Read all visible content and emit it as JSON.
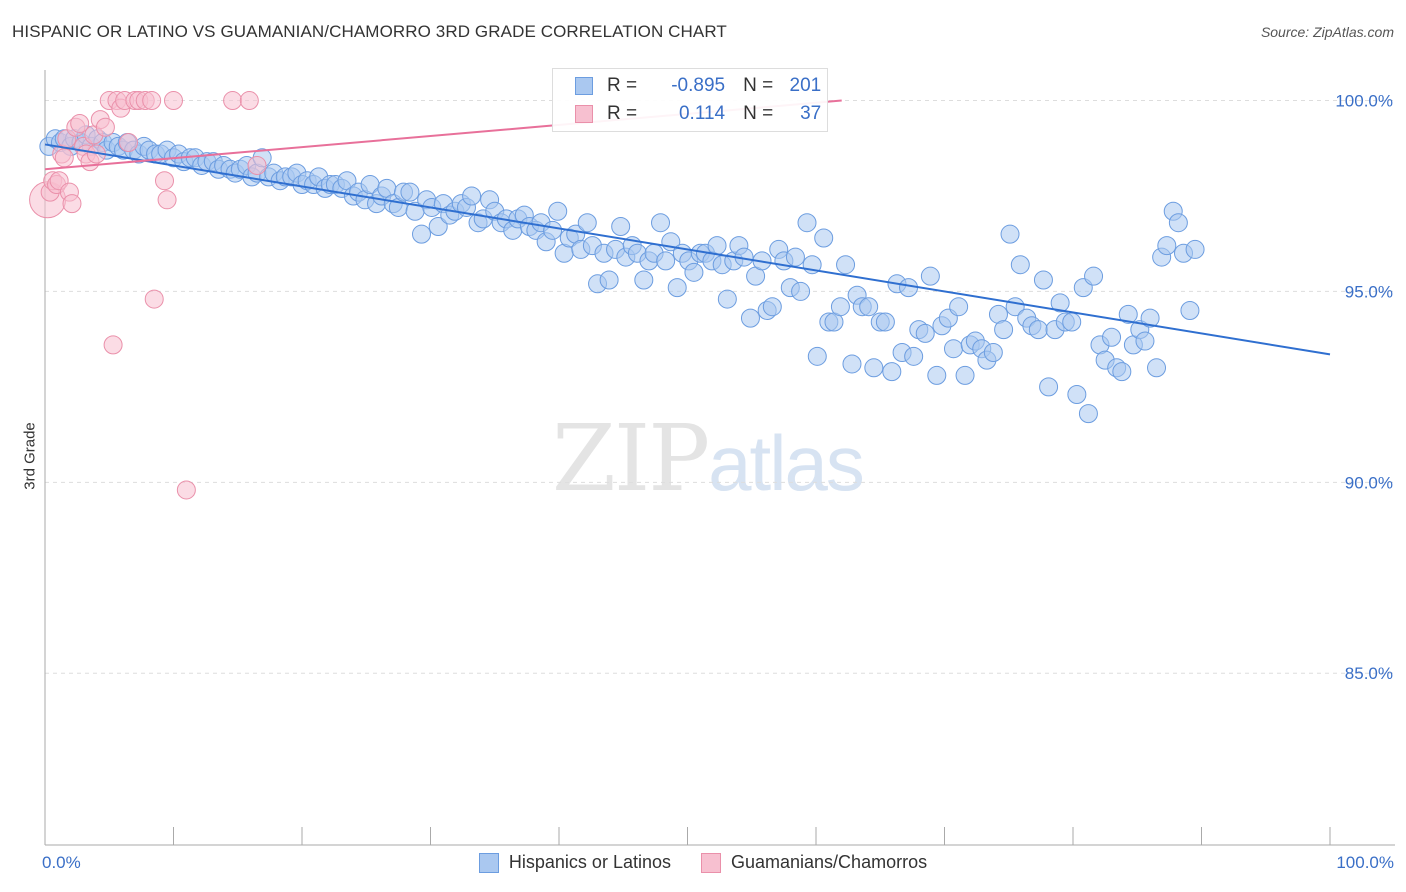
{
  "title": "HISPANIC OR LATINO VS GUAMANIAN/CHAMORRO 3RD GRADE CORRELATION CHART",
  "source": "Source: ZipAtlas.com",
  "watermark": {
    "zip": "ZIP",
    "atlas": "atlas"
  },
  "legend": {
    "rows": [
      {
        "r_label": "R =",
        "r_value": "-0.895",
        "n_label": "N =",
        "n_value": "201"
      },
      {
        "r_label": "R =",
        "r_value": "0.114",
        "n_label": "N =",
        "n_value": "37"
      }
    ]
  },
  "bottom_legend": [
    "Hispanics or Latinos",
    "Guamanians/Chamorros"
  ],
  "colors": {
    "blue_fill": "#aac8f0",
    "blue_stroke": "#6c9de0",
    "blue_line": "#2f6fd0",
    "pink_fill": "#f7c0d0",
    "pink_stroke": "#ea90aa",
    "pink_line": "#e8709a",
    "axis_text": "#3a6fc7",
    "grid": "#dddddd"
  },
  "chart_data": {
    "type": "scatter",
    "title": "HISPANIC OR LATINO VS GUAMANIAN/CHAMORRO 3RD GRADE CORRELATION CHART",
    "xlabel": "",
    "ylabel": "3rd Grade",
    "xlim": [
      0,
      100
    ],
    "ylim": [
      80.5,
      100.8
    ],
    "x_tick_labels": [
      "0.0%",
      "100.0%"
    ],
    "y_ticks": [
      85,
      90,
      95,
      100
    ],
    "y_tick_labels": [
      "85.0%",
      "90.0%",
      "95.0%",
      "100.0%"
    ],
    "series": [
      {
        "name": "Hispanics or Latinos",
        "R": -0.895,
        "N": 201,
        "trend": {
          "x": [
            0,
            100
          ],
          "y": [
            98.85,
            93.35
          ]
        },
        "points": [
          [
            0.3,
            98.8
          ],
          [
            0.8,
            99.0
          ],
          [
            1.2,
            98.9
          ],
          [
            1.5,
            99.0
          ],
          [
            2.0,
            98.8
          ],
          [
            2.3,
            99.0
          ],
          [
            2.8,
            98.9
          ],
          [
            3.2,
            99.1
          ],
          [
            3.6,
            98.8
          ],
          [
            4.1,
            99.0
          ],
          [
            4.5,
            98.9
          ],
          [
            4.8,
            98.7
          ],
          [
            5.3,
            98.9
          ],
          [
            5.7,
            98.8
          ],
          [
            6.1,
            98.7
          ],
          [
            6.4,
            98.9
          ],
          [
            6.9,
            98.7
          ],
          [
            7.3,
            98.6
          ],
          [
            7.7,
            98.8
          ],
          [
            8.1,
            98.7
          ],
          [
            8.6,
            98.6
          ],
          [
            9.0,
            98.6
          ],
          [
            9.5,
            98.7
          ],
          [
            10.0,
            98.5
          ],
          [
            10.4,
            98.6
          ],
          [
            10.8,
            98.4
          ],
          [
            11.3,
            98.5
          ],
          [
            11.7,
            98.5
          ],
          [
            12.2,
            98.3
          ],
          [
            12.6,
            98.4
          ],
          [
            13.1,
            98.4
          ],
          [
            13.5,
            98.2
          ],
          [
            13.9,
            98.3
          ],
          [
            14.4,
            98.2
          ],
          [
            14.8,
            98.1
          ],
          [
            15.2,
            98.2
          ],
          [
            15.7,
            98.3
          ],
          [
            16.1,
            98.0
          ],
          [
            16.5,
            98.1
          ],
          [
            16.9,
            98.5
          ],
          [
            17.4,
            98.0
          ],
          [
            17.8,
            98.1
          ],
          [
            18.3,
            97.9
          ],
          [
            18.7,
            98.0
          ],
          [
            19.2,
            98.0
          ],
          [
            19.6,
            98.1
          ],
          [
            20.0,
            97.8
          ],
          [
            20.4,
            97.9
          ],
          [
            20.9,
            97.8
          ],
          [
            21.3,
            98.0
          ],
          [
            21.8,
            97.7
          ],
          [
            22.2,
            97.8
          ],
          [
            22.6,
            97.8
          ],
          [
            23.1,
            97.7
          ],
          [
            23.5,
            97.9
          ],
          [
            24.0,
            97.5
          ],
          [
            24.4,
            97.6
          ],
          [
            24.9,
            97.4
          ],
          [
            25.3,
            97.8
          ],
          [
            25.8,
            97.3
          ],
          [
            26.2,
            97.5
          ],
          [
            26.6,
            97.7
          ],
          [
            27.1,
            97.3
          ],
          [
            27.5,
            97.2
          ],
          [
            27.9,
            97.6
          ],
          [
            28.4,
            97.6
          ],
          [
            28.8,
            97.1
          ],
          [
            29.3,
            96.5
          ],
          [
            29.7,
            97.4
          ],
          [
            30.1,
            97.2
          ],
          [
            30.6,
            96.7
          ],
          [
            31.0,
            97.3
          ],
          [
            31.5,
            97.0
          ],
          [
            31.9,
            97.1
          ],
          [
            32.4,
            97.3
          ],
          [
            32.8,
            97.2
          ],
          [
            33.2,
            97.5
          ],
          [
            33.7,
            96.8
          ],
          [
            34.1,
            96.9
          ],
          [
            34.6,
            97.4
          ],
          [
            35.0,
            97.1
          ],
          [
            35.5,
            96.8
          ],
          [
            35.9,
            96.9
          ],
          [
            36.4,
            96.6
          ],
          [
            36.8,
            96.9
          ],
          [
            37.3,
            97.0
          ],
          [
            37.7,
            96.7
          ],
          [
            38.2,
            96.6
          ],
          [
            38.6,
            96.8
          ],
          [
            39.0,
            96.3
          ],
          [
            39.5,
            96.6
          ],
          [
            39.9,
            97.1
          ],
          [
            40.4,
            96.0
          ],
          [
            40.8,
            96.4
          ],
          [
            41.3,
            96.5
          ],
          [
            41.7,
            96.1
          ],
          [
            42.2,
            96.8
          ],
          [
            42.6,
            96.2
          ],
          [
            43.0,
            95.2
          ],
          [
            43.5,
            96.0
          ],
          [
            43.9,
            95.3
          ],
          [
            44.4,
            96.1
          ],
          [
            44.8,
            96.7
          ],
          [
            45.2,
            95.9
          ],
          [
            45.7,
            96.2
          ],
          [
            46.1,
            96.0
          ],
          [
            46.6,
            95.3
          ],
          [
            47.0,
            95.8
          ],
          [
            47.4,
            96.0
          ],
          [
            47.9,
            96.8
          ],
          [
            48.3,
            95.8
          ],
          [
            48.7,
            96.3
          ],
          [
            49.2,
            95.1
          ],
          [
            49.6,
            96.0
          ],
          [
            50.1,
            95.8
          ],
          [
            50.5,
            95.5
          ],
          [
            51.0,
            96.0
          ],
          [
            51.4,
            96.0
          ],
          [
            51.9,
            95.8
          ],
          [
            52.3,
            96.2
          ],
          [
            52.7,
            95.7
          ],
          [
            53.1,
            94.8
          ],
          [
            53.6,
            95.8
          ],
          [
            54.0,
            96.2
          ],
          [
            54.4,
            95.9
          ],
          [
            54.9,
            94.3
          ],
          [
            55.3,
            95.4
          ],
          [
            55.8,
            95.8
          ],
          [
            56.2,
            94.5
          ],
          [
            56.6,
            94.6
          ],
          [
            57.1,
            96.1
          ],
          [
            57.5,
            95.8
          ],
          [
            58.0,
            95.1
          ],
          [
            58.4,
            95.9
          ],
          [
            58.8,
            95.0
          ],
          [
            59.3,
            96.8
          ],
          [
            59.7,
            95.7
          ],
          [
            60.1,
            93.3
          ],
          [
            60.6,
            96.4
          ],
          [
            61.0,
            94.2
          ],
          [
            61.4,
            94.2
          ],
          [
            61.9,
            94.6
          ],
          [
            62.3,
            95.7
          ],
          [
            62.8,
            93.1
          ],
          [
            63.2,
            94.9
          ],
          [
            63.6,
            94.6
          ],
          [
            64.1,
            94.6
          ],
          [
            64.5,
            93.0
          ],
          [
            65.0,
            94.2
          ],
          [
            65.4,
            94.2
          ],
          [
            65.9,
            92.9
          ],
          [
            66.3,
            95.2
          ],
          [
            66.7,
            93.4
          ],
          [
            67.2,
            95.1
          ],
          [
            67.6,
            93.3
          ],
          [
            68.0,
            94.0
          ],
          [
            68.5,
            93.9
          ],
          [
            68.9,
            95.4
          ],
          [
            69.4,
            92.8
          ],
          [
            69.8,
            94.1
          ],
          [
            70.3,
            94.3
          ],
          [
            70.7,
            93.5
          ],
          [
            71.1,
            94.6
          ],
          [
            71.6,
            92.8
          ],
          [
            72.0,
            93.6
          ],
          [
            72.4,
            93.7
          ],
          [
            72.9,
            93.5
          ],
          [
            73.3,
            93.2
          ],
          [
            73.8,
            93.4
          ],
          [
            74.2,
            94.4
          ],
          [
            74.6,
            94.0
          ],
          [
            75.1,
            96.5
          ],
          [
            75.5,
            94.6
          ],
          [
            75.9,
            95.7
          ],
          [
            76.4,
            94.3
          ],
          [
            76.8,
            94.1
          ],
          [
            77.3,
            94.0
          ],
          [
            77.7,
            95.3
          ],
          [
            78.1,
            92.5
          ],
          [
            78.6,
            94.0
          ],
          [
            79.0,
            94.7
          ],
          [
            79.4,
            94.2
          ],
          [
            79.9,
            94.2
          ],
          [
            80.3,
            92.3
          ],
          [
            80.8,
            95.1
          ],
          [
            81.2,
            91.8
          ],
          [
            81.6,
            95.4
          ],
          [
            82.1,
            93.6
          ],
          [
            82.5,
            93.2
          ],
          [
            83.0,
            93.8
          ],
          [
            83.4,
            93.0
          ],
          [
            83.8,
            92.9
          ],
          [
            84.3,
            94.4
          ],
          [
            84.7,
            93.6
          ],
          [
            85.2,
            94.0
          ],
          [
            85.6,
            93.7
          ],
          [
            86.0,
            94.3
          ],
          [
            86.5,
            93.0
          ],
          [
            86.9,
            95.9
          ],
          [
            87.3,
            96.2
          ],
          [
            87.8,
            97.1
          ],
          [
            88.2,
            96.8
          ],
          [
            88.6,
            96.0
          ],
          [
            89.1,
            94.5
          ],
          [
            89.5,
            96.1
          ]
        ]
      },
      {
        "name": "Guamanians/Chamorros",
        "R": 0.114,
        "N": 37,
        "trend": {
          "x": [
            0,
            62
          ],
          "y": [
            98.2,
            100.0
          ]
        },
        "points": [
          [
            0.2,
            97.4
          ],
          [
            0.4,
            97.6
          ],
          [
            0.6,
            97.9
          ],
          [
            0.9,
            97.8
          ],
          [
            1.1,
            97.9
          ],
          [
            1.3,
            98.6
          ],
          [
            1.5,
            98.5
          ],
          [
            1.7,
            99.0
          ],
          [
            1.9,
            97.6
          ],
          [
            2.1,
            97.3
          ],
          [
            2.4,
            99.3
          ],
          [
            2.7,
            99.4
          ],
          [
            3.0,
            98.8
          ],
          [
            3.2,
            98.6
          ],
          [
            3.5,
            98.4
          ],
          [
            3.8,
            99.1
          ],
          [
            4.0,
            98.6
          ],
          [
            4.3,
            99.5
          ],
          [
            4.7,
            99.3
          ],
          [
            5.0,
            100.0
          ],
          [
            5.3,
            93.6
          ],
          [
            5.6,
            100.0
          ],
          [
            5.9,
            99.8
          ],
          [
            6.2,
            100.0
          ],
          [
            6.5,
            98.9
          ],
          [
            7.0,
            100.0
          ],
          [
            7.3,
            100.0
          ],
          [
            7.8,
            100.0
          ],
          [
            8.3,
            100.0
          ],
          [
            8.5,
            94.8
          ],
          [
            9.3,
            97.9
          ],
          [
            9.5,
            97.4
          ],
          [
            10.0,
            100.0
          ],
          [
            11.0,
            89.8
          ],
          [
            14.6,
            100.0
          ],
          [
            15.9,
            100.0
          ],
          [
            16.5,
            98.3
          ]
        ]
      }
    ]
  }
}
